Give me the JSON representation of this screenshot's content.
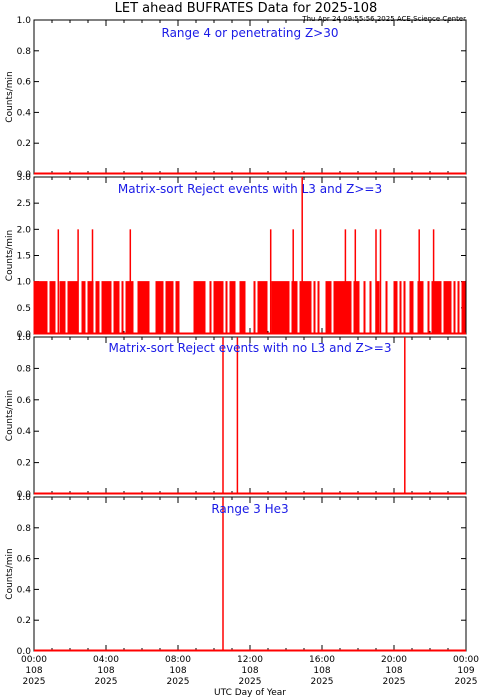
{
  "title": "LET ahead BUFRATES Data for 2025-108",
  "timestamp": "Thu Apr 24 09:55:56 2025 ACE Science Center",
  "xlabel": "UTC Day of Year",
  "x_ticks": [
    {
      "time": "00:00",
      "doy": "108",
      "year": "2025"
    },
    {
      "time": "04:00",
      "doy": "108",
      "year": "2025"
    },
    {
      "time": "08:00",
      "doy": "108",
      "year": "2025"
    },
    {
      "time": "12:00",
      "doy": "108",
      "year": "2025"
    },
    {
      "time": "16:00",
      "doy": "108",
      "year": "2025"
    },
    {
      "time": "20:00",
      "doy": "108",
      "year": "2025"
    },
    {
      "time": "00:00",
      "doy": "109",
      "year": "2025"
    }
  ],
  "colors": {
    "line": "#ff0000",
    "panel_title": "#1a1ae6",
    "axes": "#000000"
  },
  "chart_data": [
    {
      "type": "line",
      "title": "Range 4 or   penetrating Z>30",
      "ylabel": "Counts/min",
      "x_unit": "hours UTC",
      "xlim": [
        0,
        24
      ],
      "ylim": [
        0,
        1.0
      ],
      "yticks": [
        "0.0",
        "0.2",
        "0.4",
        "0.6",
        "0.8",
        "1.0"
      ],
      "spikes": []
    },
    {
      "type": "line",
      "title": "Matrix-sort Reject events with L3 and Z>=3",
      "ylabel": "Counts/min",
      "x_unit": "hours UTC",
      "xlim": [
        0,
        24
      ],
      "ylim": [
        0,
        3.0
      ],
      "yticks": [
        "0.0",
        "0.5",
        "1.0",
        "1.5",
        "2.0",
        "2.5",
        "3.0"
      ],
      "baseline_pattern": "values alternate between 0 and 1 counts/min throughout the day",
      "spikes": [
        {
          "x": 1.35,
          "y": 2
        },
        {
          "x": 2.45,
          "y": 2
        },
        {
          "x": 3.25,
          "y": 2
        },
        {
          "x": 5.35,
          "y": 2
        },
        {
          "x": 13.15,
          "y": 2
        },
        {
          "x": 14.4,
          "y": 2
        },
        {
          "x": 14.9,
          "y": 3
        },
        {
          "x": 17.3,
          "y": 2
        },
        {
          "x": 17.85,
          "y": 2
        },
        {
          "x": 19.0,
          "y": 2
        },
        {
          "x": 19.25,
          "y": 2
        },
        {
          "x": 21.4,
          "y": 2
        },
        {
          "x": 22.2,
          "y": 2
        }
      ]
    },
    {
      "type": "line",
      "title": "Matrix-sort Reject events with no L3 and Z>=3",
      "ylabel": "Counts/min",
      "x_unit": "hours UTC",
      "xlim": [
        0,
        24
      ],
      "ylim": [
        0,
        1.0
      ],
      "yticks": [
        "0.0",
        "0.2",
        "0.4",
        "0.6",
        "0.8",
        "1.0"
      ],
      "spikes": [
        {
          "x": 10.5,
          "y": 1
        },
        {
          "x": 11.3,
          "y": 1
        },
        {
          "x": 20.6,
          "y": 1
        }
      ]
    },
    {
      "type": "line",
      "title": "Range 3 He3",
      "ylabel": "Counts/min",
      "x_unit": "hours UTC",
      "xlim": [
        0,
        24
      ],
      "ylim": [
        0,
        1.0
      ],
      "yticks": [
        "0.0",
        "0.2",
        "0.4",
        "0.6",
        "0.8",
        "1.0"
      ],
      "spikes": [
        {
          "x": 10.5,
          "y": 1
        }
      ]
    }
  ]
}
